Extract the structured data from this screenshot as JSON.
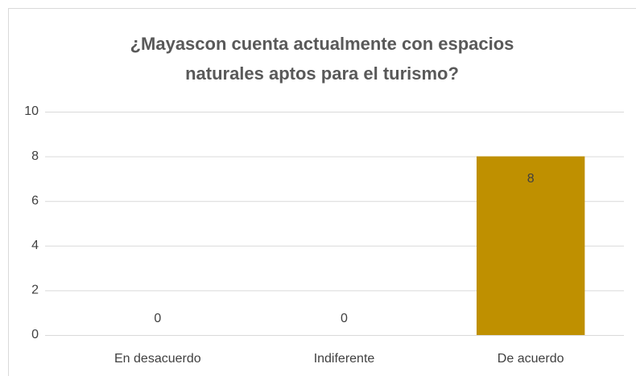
{
  "chart_data": {
    "type": "bar",
    "title": "¿Mayascon cuenta actualmente con espacios naturales aptos para el turismo?",
    "categories": [
      "En desacuerdo",
      "Indiferente",
      "De acuerdo"
    ],
    "values": [
      0,
      0,
      8
    ],
    "color": "#bf9000",
    "ylim": [
      0,
      10
    ],
    "yticks": [
      0,
      2,
      4,
      6,
      8,
      10
    ],
    "grid": true
  }
}
